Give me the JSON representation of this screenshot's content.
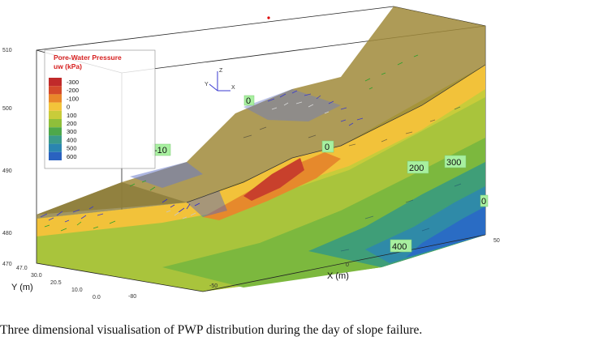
{
  "caption": "Three dimensional visualisation of PWP distribution during the day of slope failure.",
  "legend": {
    "title_line1": "Pore-Water Pressure",
    "title_line2": "uw (kPa)",
    "entries": [
      {
        "label": "-300",
        "color": "#c02a2a"
      },
      {
        "label": "-200",
        "color": "#d44a2a"
      },
      {
        "label": "-100",
        "color": "#e9872a"
      },
      {
        "label": "0",
        "color": "#f3c43a"
      },
      {
        "label": "100",
        "color": "#c9cc3a"
      },
      {
        "label": "200",
        "color": "#8fbf3a"
      },
      {
        "label": "300",
        "color": "#4ea84a"
      },
      {
        "label": "400",
        "color": "#3a9a8a"
      },
      {
        "label": "500",
        "color": "#2a85b0"
      },
      {
        "label": "600",
        "color": "#2a62c0"
      }
    ]
  },
  "axes": {
    "x_title": "X (m)",
    "y_title": "Y (m)",
    "z_ticks": [
      "510",
      "500",
      "490",
      "480",
      "470"
    ],
    "y_ticks": [
      "47.0",
      "30.0",
      "20.5",
      "10.0",
      "0.0"
    ],
    "x_ticks": [
      "-80",
      "-50",
      "0",
      "50"
    ],
    "z_corner_tick": "-80",
    "triad_labels": {
      "z": "Z",
      "y": "Y",
      "x": "X"
    }
  },
  "contour_labels": [
    {
      "text": "0"
    },
    {
      "text": "-10"
    },
    {
      "text": "0"
    },
    {
      "text": "200"
    },
    {
      "text": "300"
    },
    {
      "text": "400"
    },
    {
      "text": "0"
    }
  ]
}
